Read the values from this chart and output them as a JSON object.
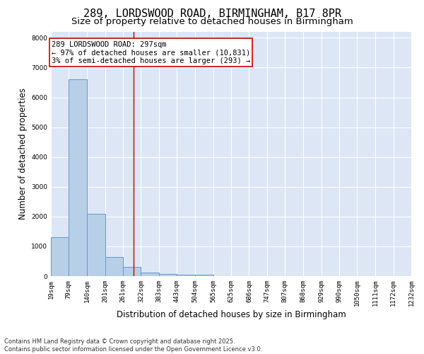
{
  "title_line1": "289, LORDSWOOD ROAD, BIRMINGHAM, B17 8PR",
  "title_line2": "Size of property relative to detached houses in Birmingham",
  "xlabel": "Distribution of detached houses by size in Birmingham",
  "ylabel": "Number of detached properties",
  "bin_edges": [
    19,
    79,
    140,
    201,
    261,
    322,
    383,
    443,
    504,
    565,
    625,
    686,
    747,
    807,
    868,
    929,
    990,
    1050,
    1111,
    1172,
    1232
  ],
  "bar_heights": [
    1300,
    6600,
    2100,
    650,
    300,
    120,
    80,
    50,
    50,
    0,
    0,
    0,
    0,
    0,
    0,
    0,
    0,
    0,
    0,
    0
  ],
  "bar_color": "#b8cfe8",
  "bar_edge_color": "#6699cc",
  "property_sqm": 297,
  "red_line_color": "#cc0000",
  "annotation_text": "289 LORDSWOOD ROAD: 297sqm\n← 97% of detached houses are smaller (10,831)\n3% of semi-detached houses are larger (293) →",
  "annotation_box_color": "#ffffff",
  "annotation_box_edge_color": "#cc0000",
  "ylim": [
    0,
    8200
  ],
  "yticks": [
    0,
    1000,
    2000,
    3000,
    4000,
    5000,
    6000,
    7000,
    8000
  ],
  "background_color": "#dce6f5",
  "grid_color": "#ffffff",
  "fig_background": "#ffffff",
  "footer_line1": "Contains HM Land Registry data © Crown copyright and database right 2025.",
  "footer_line2": "Contains public sector information licensed under the Open Government Licence v3.0.",
  "title_fontsize": 11,
  "subtitle_fontsize": 9.5,
  "axis_label_fontsize": 8.5,
  "tick_fontsize": 6.5,
  "annotation_fontsize": 7.5,
  "footer_fontsize": 6
}
